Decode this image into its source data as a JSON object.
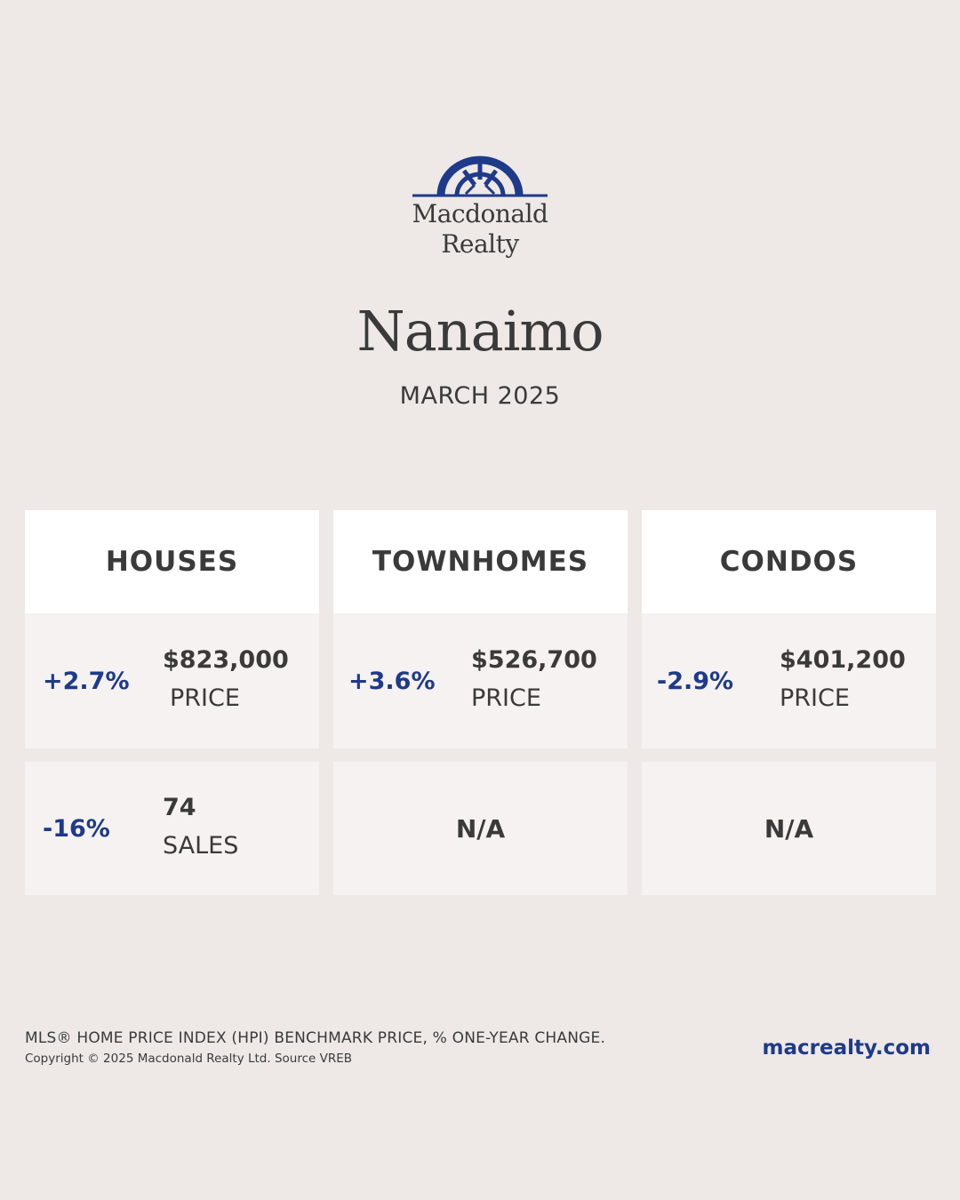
{
  "brand": {
    "name_line1": "Macdonald",
    "name_line2": "Realty",
    "color": "#1e3a8a"
  },
  "city": "Nanaimo",
  "period": "MARCH 2025",
  "columns": [
    {
      "title": "HOUSES",
      "price": {
        "change": "+2.7%",
        "value": "$823,000",
        "label": "PRICE"
      },
      "sales": {
        "change": "-16%",
        "value": "74",
        "label": "SALES"
      }
    },
    {
      "title": "TOWNHOMES",
      "price": {
        "change": "+3.6%",
        "value": "$526,700",
        "label": "PRICE"
      },
      "sales": {
        "na": "N/A"
      }
    },
    {
      "title": "CONDOS",
      "price": {
        "change": "-2.9%",
        "value": "$401,200",
        "label": "PRICE"
      },
      "sales": {
        "na": "N/A"
      }
    }
  ],
  "footer": {
    "note": "MLS® HOME PRICE INDEX (HPI) BENCHMARK PRICE, % ONE-YEAR CHANGE.",
    "copyright": "Copyright © 2025 Macdonald Realty Ltd. Source VREB",
    "website": "macrealty.com"
  },
  "colors": {
    "background": "#eee9e6",
    "accent": "#1e3a8a",
    "text": "#3a3a3a",
    "cell": "#f6f2f1"
  }
}
